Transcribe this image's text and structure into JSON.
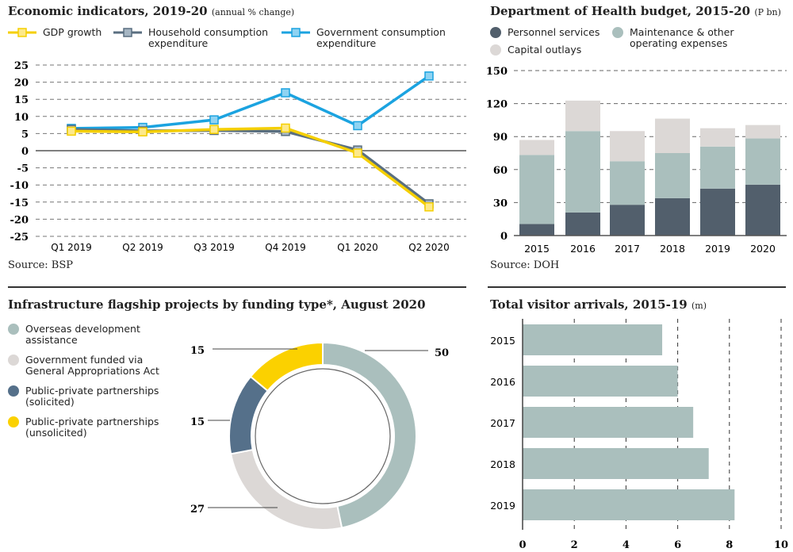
{
  "colors": {
    "gdp": "#f5cf00",
    "household": "#5a6f80",
    "government": "#1ba3e0",
    "personnel": "#525f6c",
    "maintenance": "#aabfbd",
    "capital": "#dcd8d6",
    "oda": "#aabfbd",
    "gov_funded": "#dcd8d6",
    "ppp_solicited": "#55708a",
    "ppp_unsolicited": "#fbd100"
  },
  "chart_data": [
    {
      "type": "line",
      "title": "Economic indicators, 2019-20",
      "subtitle": "(annual % change)",
      "source": "Source: BSP",
      "categories": [
        "Q1 2019",
        "Q2 2019",
        "Q3 2019",
        "Q4 2019",
        "Q1 2020",
        "Q2 2020"
      ],
      "ylim": [
        -25,
        25
      ],
      "yticks": [
        25,
        20,
        15,
        10,
        5,
        0,
        -5,
        -10,
        -15,
        -20,
        -25
      ],
      "grid": true,
      "legend": "top",
      "series": [
        {
          "name": "GDP growth",
          "values": [
            5.7,
            5.5,
            6.2,
            6.6,
            -0.7,
            -16.4
          ]
        },
        {
          "name": "Household consumption expenditure",
          "values": [
            6.2,
            5.8,
            5.9,
            5.6,
            0.2,
            -15.5
          ]
        },
        {
          "name": "Government consumption expenditure",
          "values": [
            6.5,
            6.8,
            9.0,
            16.9,
            7.3,
            21.8
          ]
        }
      ]
    },
    {
      "type": "bar",
      "stacked": true,
      "title": "Department of Health budget, 2015-20",
      "subtitle": "(P bn)",
      "source": "Source: DOH",
      "categories": [
        "2015",
        "2016",
        "2017",
        "2018",
        "2019",
        "2020"
      ],
      "ylim": [
        0,
        150
      ],
      "yticks": [
        150,
        120,
        90,
        60,
        30,
        0
      ],
      "grid": true,
      "legend": "top",
      "series": [
        {
          "name": "Personnel services",
          "values": [
            10.5,
            21,
            28,
            34,
            42.7,
            46.3
          ]
        },
        {
          "name": "Maintenance & other operating expenses",
          "values": [
            62.8,
            74,
            39.6,
            41,
            38.2,
            42
          ]
        },
        {
          "name": "Capital outlays",
          "values": [
            13.6,
            27.7,
            27.4,
            31.3,
            16.7,
            12.2
          ]
        }
      ]
    },
    {
      "type": "pie",
      "donut": true,
      "title": "Infrastructure flagship projects by funding type*, August 2020",
      "legend": "left",
      "slices": [
        {
          "name": "Overseas development assistance",
          "value": 50,
          "label": "50"
        },
        {
          "name": "Government funded via General Appropriations Act",
          "value": 27,
          "label": "27"
        },
        {
          "name": "Public-private partnerships (solicited)",
          "value": 15,
          "label": "15"
        },
        {
          "name": "Public-private partnerships (unsolicited)",
          "value": 15,
          "label": "15"
        }
      ]
    },
    {
      "type": "bar",
      "orientation": "horizontal",
      "title": "Total visitor arrivals, 2015-19",
      "subtitle": "(m)",
      "categories": [
        "2015",
        "2016",
        "2017",
        "2018",
        "2019"
      ],
      "values": [
        5.4,
        6.0,
        6.6,
        7.2,
        8.2
      ],
      "xlim": [
        0,
        10
      ],
      "xticks": [
        0,
        2,
        4,
        6,
        8,
        10
      ],
      "grid": true
    }
  ]
}
